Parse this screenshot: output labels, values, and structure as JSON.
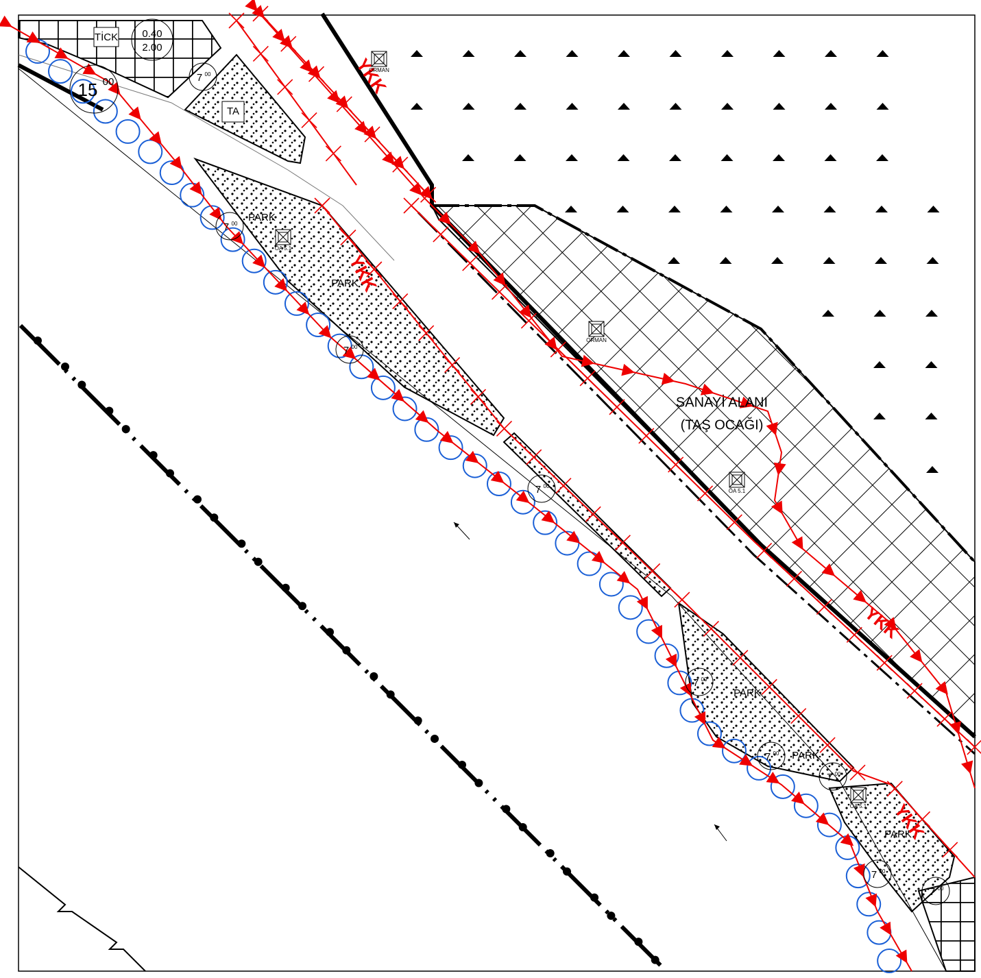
{
  "commercial_zone": {
    "label": "TİCK",
    "ratio_1": "0.40",
    "ratio_2": "2.00"
  },
  "main_road": {
    "width": "15",
    "width_decimal": "00"
  },
  "road_widths": [
    {
      "width": "7",
      "decimal": "00"
    },
    {
      "width": "7",
      "decimal": "00"
    },
    {
      "width": "7",
      "decimal": "00"
    },
    {
      "width": "7",
      "decimal": "00"
    },
    {
      "width": "7",
      "decimal": "00"
    },
    {
      "width": "7",
      "decimal": "00"
    },
    {
      "width": "7",
      "decimal": "00"
    },
    {
      "width": "7",
      "decimal": "00"
    },
    {
      "width": "7",
      "decimal": "00"
    }
  ],
  "technical_area": "TA",
  "forest_labels": [
    "ORMAN",
    "ORMAN"
  ],
  "park_labels": [
    "PARK",
    "PARK",
    "PARK",
    "PARK",
    "PARK"
  ],
  "green_area_labels": [
    "ÖA 5.1",
    "ÖA 5.1",
    "ÖA 5.1"
  ],
  "ykk_labels": [
    "YKK",
    "YKK",
    "YKK",
    "YKK"
  ],
  "industrial_zone": {
    "name": "SANAYİ ALANI",
    "subtitle": "(TAŞ OCAĞI)"
  }
}
